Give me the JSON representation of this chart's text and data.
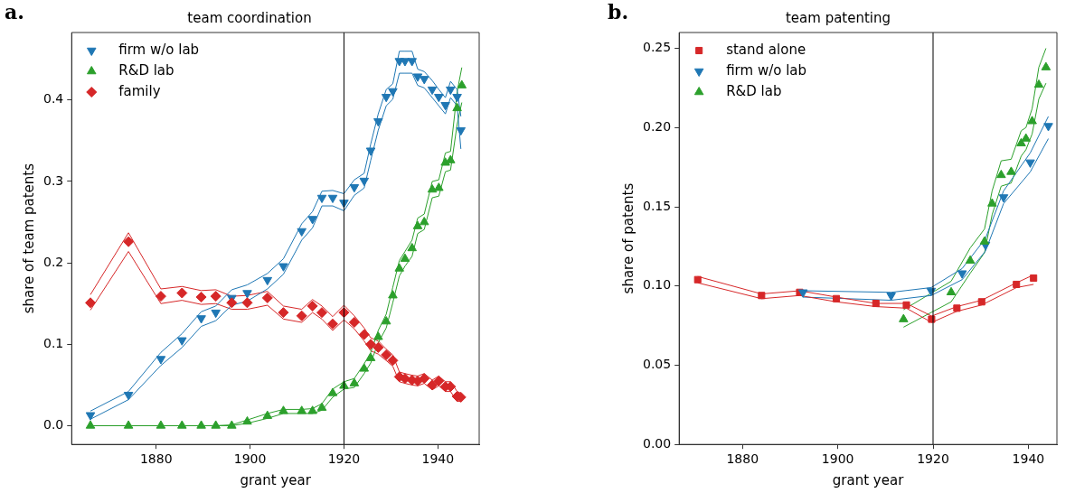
{
  "chart_data": [
    {
      "type": "scatter",
      "title": "team coordination",
      "xlabel": "grant year",
      "ylabel": "share of team patents",
      "annotations": [
        "a."
      ],
      "xlim": [
        1862,
        1948.8
      ],
      "ylim": [
        -0.023,
        0.483
      ],
      "xticks": [
        1880,
        1900,
        1920,
        1940
      ],
      "yticks": [
        {
          "value": 0,
          "label": "0.0"
        },
        {
          "value": 0.1,
          "label": "0.1"
        },
        {
          "value": 0.2,
          "label": "0.2"
        },
        {
          "value": 0.3,
          "label": "0.3"
        },
        {
          "value": 0.4,
          "label": "0.4"
        }
      ],
      "grid": false,
      "legend": "top left",
      "ref_lines": [
        {
          "axis": "x",
          "value": 1920,
          "color": "#000000"
        }
      ],
      "series": [
        {
          "name": "firm w/o lab",
          "color": "#1f77b4",
          "marker": "triangle-down",
          "x": [
            1866,
            1874.1,
            1881,
            1885.5,
            1889.6,
            1892.7,
            1896.1,
            1899.4,
            1903.7,
            1907.1,
            1911,
            1913.3,
            1915.3,
            1917.6,
            1920,
            1922.2,
            1924.3,
            1925.7,
            1927.3,
            1929,
            1930.4,
            1931.8,
            1933,
            1934.5,
            1935.7,
            1937.1,
            1938.8,
            1940.2,
            1941.6,
            1942.7,
            1944.1,
            1944.9
          ],
          "values": [
            0.013,
            0.038,
            0.082,
            0.105,
            0.132,
            0.139,
            0.157,
            0.163,
            0.179,
            0.196,
            0.239,
            0.254,
            0.28,
            0.28,
            0.274,
            0.293,
            0.301,
            0.338,
            0.374,
            0.404,
            0.411,
            0.448,
            0.448,
            0.448,
            0.429,
            0.426,
            0.413,
            0.404,
            0.394,
            0.413,
            0.404,
            0.363
          ]
        },
        {
          "name": "R&D lab",
          "color": "#2ca02c",
          "marker": "triangle",
          "x": [
            1866,
            1874.1,
            1881,
            1885.5,
            1889.6,
            1892.7,
            1896.1,
            1899.4,
            1903.7,
            1907.1,
            1911,
            1913.3,
            1915.3,
            1917.6,
            1920,
            1922.2,
            1924.3,
            1925.7,
            1927.3,
            1929,
            1930.4,
            1931.8,
            1933,
            1934.5,
            1935.7,
            1937.1,
            1938.8,
            1940.2,
            1941.6,
            1942.7,
            1944.1,
            1945.1
          ],
          "values": [
            0,
            0,
            0,
            0,
            0,
            0,
            0,
            0.005,
            0.012,
            0.018,
            0.018,
            0.018,
            0.022,
            0.04,
            0.049,
            0.052,
            0.07,
            0.083,
            0.109,
            0.128,
            0.16,
            0.193,
            0.205,
            0.218,
            0.245,
            0.25,
            0.29,
            0.292,
            0.323,
            0.326,
            0.39,
            0.418
          ]
        },
        {
          "name": "family",
          "color": "#d62728",
          "marker": "diamond",
          "x": [
            1866,
            1874.1,
            1881,
            1885.5,
            1889.6,
            1892.7,
            1896.1,
            1899.4,
            1903.7,
            1907.1,
            1911,
            1913.3,
            1915.3,
            1917.6,
            1920,
            1922.2,
            1924.3,
            1925.7,
            1927.3,
            1929,
            1930.4,
            1931.8,
            1933,
            1934.5,
            1935.7,
            1937.1,
            1938.8,
            1940.2,
            1941.6,
            1942.7,
            1944.1,
            1944.9
          ],
          "values": [
            0.151,
            0.226,
            0.159,
            0.163,
            0.158,
            0.159,
            0.151,
            0.151,
            0.157,
            0.139,
            0.135,
            0.147,
            0.139,
            0.125,
            0.139,
            0.127,
            0.112,
            0.1,
            0.096,
            0.087,
            0.08,
            0.06,
            0.058,
            0.056,
            0.055,
            0.058,
            0.05,
            0.055,
            0.048,
            0.048,
            0.036,
            0.035
          ]
        },
        {
          "type": "line",
          "color": "#1f77b4",
          "marker": "none",
          "x": [
            1866,
            1874.1,
            1881,
            1885.5,
            1889.6,
            1892.7,
            1896.1,
            1899.4,
            1903.7,
            1907.1,
            1911,
            1913.3,
            1915.3,
            1917.6,
            1920,
            1922.2,
            1924.3,
            1925.7,
            1927.3,
            1929,
            1930.4,
            1931.8,
            1933,
            1934.5,
            1935.7,
            1937.1,
            1938.8,
            1940.2,
            1941.6,
            1942.7,
            1944.1,
            1944.9
          ],
          "values": [
            0.018,
            0.042,
            0.09,
            0.113,
            0.14,
            0.147,
            0.167,
            0.173,
            0.187,
            0.205,
            0.248,
            0.263,
            0.288,
            0.289,
            0.285,
            0.302,
            0.31,
            0.346,
            0.383,
            0.413,
            0.42,
            0.46,
            0.46,
            0.46,
            0.438,
            0.435,
            0.424,
            0.413,
            0.403,
            0.423,
            0.413,
            0.38
          ]
        },
        {
          "type": "line",
          "color": "#1f77b4",
          "marker": "none",
          "x": [
            1866,
            1874.1,
            1881,
            1885.5,
            1889.6,
            1892.7,
            1896.1,
            1899.4,
            1903.7,
            1907.1,
            1911,
            1913.3,
            1915.3,
            1917.6,
            1920,
            1922.2,
            1924.3,
            1925.7,
            1927.3,
            1929,
            1930.4,
            1931.8,
            1933,
            1934.5,
            1935.7,
            1937.1,
            1938.8,
            1940.2,
            1941.6,
            1942.7,
            1944.1,
            1944.9
          ],
          "values": [
            0.008,
            0.032,
            0.074,
            0.096,
            0.122,
            0.129,
            0.148,
            0.153,
            0.168,
            0.186,
            0.228,
            0.243,
            0.27,
            0.27,
            0.264,
            0.283,
            0.292,
            0.326,
            0.363,
            0.393,
            0.401,
            0.433,
            0.433,
            0.433,
            0.418,
            0.415,
            0.403,
            0.393,
            0.383,
            0.403,
            0.393,
            0.34
          ]
        },
        {
          "type": "line",
          "color": "#2ca02c",
          "marker": "none",
          "x": [
            1866,
            1874.1,
            1881,
            1885.5,
            1889.6,
            1892.7,
            1896.1,
            1899.4,
            1903.7,
            1907.1,
            1911,
            1913.3,
            1915.3,
            1917.6,
            1920,
            1922.2,
            1924.3,
            1925.7,
            1927.3,
            1929,
            1930.4,
            1931.8,
            1933,
            1934.5,
            1935.7,
            1937.1,
            1938.8,
            1940.2,
            1941.6,
            1942.7,
            1944.1,
            1945.1
          ],
          "values": [
            0,
            0,
            0,
            0,
            0,
            0,
            0.001,
            0.007,
            0.015,
            0.02,
            0.02,
            0.021,
            0.027,
            0.045,
            0.054,
            0.058,
            0.076,
            0.09,
            0.117,
            0.137,
            0.17,
            0.203,
            0.214,
            0.228,
            0.255,
            0.26,
            0.3,
            0.302,
            0.335,
            0.337,
            0.41,
            0.44
          ]
        },
        {
          "type": "line",
          "color": "#2ca02c",
          "marker": "none",
          "x": [
            1866,
            1874.1,
            1881,
            1885.5,
            1889.6,
            1892.7,
            1896.1,
            1899.4,
            1903.7,
            1907.1,
            1911,
            1913.3,
            1915.3,
            1917.6,
            1920,
            1922.2,
            1924.3,
            1925.7,
            1927.3,
            1929,
            1930.4,
            1931.8,
            1933,
            1934.5,
            1935.7,
            1937.1,
            1938.8,
            1940.2,
            1941.6,
            1942.7,
            1944.1,
            1945.1
          ],
          "values": [
            0,
            0,
            0,
            0,
            0,
            0,
            0,
            0.003,
            0.009,
            0.015,
            0.015,
            0.015,
            0.019,
            0.035,
            0.045,
            0.047,
            0.064,
            0.077,
            0.102,
            0.12,
            0.151,
            0.184,
            0.196,
            0.208,
            0.236,
            0.241,
            0.28,
            0.282,
            0.312,
            0.314,
            0.37,
            0.397
          ]
        },
        {
          "type": "line",
          "color": "#d62728",
          "marker": "none",
          "x": [
            1866,
            1874.1,
            1881,
            1885.5,
            1889.6,
            1892.7,
            1896.1,
            1899.4,
            1903.7,
            1907.1,
            1911,
            1913.3,
            1915.3,
            1917.6,
            1920,
            1922.2,
            1924.3,
            1925.7,
            1927.3,
            1929,
            1930.4,
            1931.8,
            1933,
            1934.5,
            1935.7,
            1937.1,
            1938.8,
            1940.2,
            1941.6,
            1942.7,
            1944.1,
            1944.9
          ],
          "values": [
            0.161,
            0.237,
            0.168,
            0.171,
            0.166,
            0.167,
            0.159,
            0.16,
            0.165,
            0.147,
            0.143,
            0.155,
            0.147,
            0.134,
            0.148,
            0.135,
            0.12,
            0.108,
            0.104,
            0.094,
            0.087,
            0.066,
            0.064,
            0.062,
            0.061,
            0.064,
            0.056,
            0.061,
            0.054,
            0.054,
            0.042,
            0.04
          ]
        },
        {
          "type": "line",
          "color": "#d62728",
          "marker": "none",
          "x": [
            1866,
            1874.1,
            1881,
            1885.5,
            1889.6,
            1892.7,
            1896.1,
            1899.4,
            1903.7,
            1907.1,
            1911,
            1913.3,
            1915.3,
            1917.6,
            1920,
            1922.2,
            1924.3,
            1925.7,
            1927.3,
            1929,
            1930.4,
            1931.8,
            1933,
            1934.5,
            1935.7,
            1937.1,
            1938.8,
            1940.2,
            1941.6,
            1942.7,
            1944.1,
            1944.9
          ],
          "values": [
            0.142,
            0.214,
            0.15,
            0.154,
            0.149,
            0.15,
            0.143,
            0.143,
            0.148,
            0.131,
            0.127,
            0.139,
            0.131,
            0.117,
            0.13,
            0.119,
            0.104,
            0.092,
            0.088,
            0.08,
            0.073,
            0.054,
            0.052,
            0.05,
            0.049,
            0.052,
            0.044,
            0.049,
            0.042,
            0.042,
            0.03,
            0.03
          ]
        }
      ]
    },
    {
      "type": "scatter",
      "title": "team patenting",
      "xlabel": "grant year",
      "ylabel": "share of patents",
      "annotations": [
        "b."
      ],
      "xlim": [
        1866.7,
        1946
      ],
      "ylim": [
        0,
        0.26
      ],
      "xticks": [
        1880,
        1900,
        1920,
        1940
      ],
      "yticks": [
        {
          "value": 0,
          "label": "0.00"
        },
        {
          "value": 0.05,
          "label": "0.05"
        },
        {
          "value": 0.1,
          "label": "0.10"
        },
        {
          "value": 0.15,
          "label": "0.15"
        },
        {
          "value": 0.2,
          "label": "0.20"
        },
        {
          "value": 0.25,
          "label": "0.25"
        }
      ],
      "grid": false,
      "legend": "top left",
      "ref_lines": [
        {
          "axis": "x",
          "value": 1920,
          "color": "#000000"
        }
      ],
      "series": [
        {
          "name": "stand alone",
          "color": "#d62728",
          "marker": "square",
          "x": [
            1870.6,
            1884,
            1892,
            1899.7,
            1908,
            1914.4,
            1919.7,
            1925,
            1930.2,
            1937.5,
            1941.1
          ],
          "values": [
            0.104,
            0.094,
            0.096,
            0.092,
            0.089,
            0.088,
            0.079,
            0.086,
            0.09,
            0.101,
            0.105
          ]
        },
        {
          "name": "firm w/o lab",
          "color": "#1f77b4",
          "marker": "triangle-down",
          "x": [
            1892.7,
            1911.2,
            1919.6,
            1926.1,
            1931,
            1934.8,
            1940.4,
            1944.2
          ],
          "values": [
            0.096,
            0.094,
            0.097,
            0.108,
            0.126,
            0.156,
            0.178,
            0.201
          ]
        },
        {
          "name": "R&D lab",
          "color": "#2ca02c",
          "marker": "triangle",
          "x": [
            1913.8,
            1923.8,
            1927.8,
            1930.8,
            1932.4,
            1934.3,
            1936.4,
            1938.5,
            1939.5,
            1940.8,
            1942.2,
            1943.7
          ],
          "values": [
            0.079,
            0.096,
            0.116,
            0.128,
            0.152,
            0.17,
            0.172,
            0.19,
            0.193,
            0.204,
            0.227,
            0.238
          ]
        },
        {
          "type": "line",
          "color": "#d62728",
          "marker": "none",
          "x": [
            1870.6,
            1884,
            1892,
            1899.7,
            1908,
            1914.4,
            1919.7,
            1925,
            1930.2,
            1937.5,
            1941.1
          ],
          "values": [
            0.106,
            0.095,
            0.097,
            0.093,
            0.089,
            0.089,
            0.081,
            0.087,
            0.091,
            0.102,
            0.107
          ]
        },
        {
          "type": "line",
          "color": "#d62728",
          "marker": "none",
          "x": [
            1870.6,
            1884,
            1892,
            1899.7,
            1908,
            1914.4,
            1919.7,
            1925,
            1930.2,
            1937.5,
            1941.1
          ],
          "values": [
            0.102,
            0.092,
            0.094,
            0.09,
            0.087,
            0.086,
            0.077,
            0.084,
            0.088,
            0.099,
            0.101
          ]
        },
        {
          "type": "line",
          "color": "#1f77b4",
          "marker": "none",
          "x": [
            1892.7,
            1911.2,
            1919.6,
            1926.1,
            1931,
            1934.8,
            1940.4,
            1944.2
          ],
          "values": [
            0.097,
            0.096,
            0.099,
            0.111,
            0.13,
            0.16,
            0.184,
            0.207
          ]
        },
        {
          "type": "line",
          "color": "#1f77b4",
          "marker": "none",
          "x": [
            1892.7,
            1911.2,
            1919.6,
            1926.1,
            1931,
            1934.8,
            1940.4,
            1944.2
          ],
          "values": [
            0.093,
            0.091,
            0.094,
            0.104,
            0.122,
            0.152,
            0.172,
            0.193
          ]
        },
        {
          "type": "line",
          "color": "#2ca02c",
          "marker": "none",
          "x": [
            1913.8,
            1923.8,
            1927.8,
            1930.8,
            1932.4,
            1934.3,
            1936.4,
            1938.5,
            1939.5,
            1940.8,
            1942.2,
            1943.7
          ],
          "values": [
            0.085,
            0.103,
            0.124,
            0.136,
            0.16,
            0.179,
            0.18,
            0.198,
            0.2,
            0.212,
            0.238,
            0.25
          ]
        },
        {
          "type": "line",
          "color": "#2ca02c",
          "marker": "none",
          "x": [
            1913.8,
            1923.8,
            1927.8,
            1930.8,
            1932.4,
            1934.3,
            1936.4,
            1938.5,
            1939.5,
            1940.8,
            1942.2,
            1943.7
          ],
          "values": [
            0.074,
            0.09,
            0.108,
            0.121,
            0.145,
            0.163,
            0.165,
            0.182,
            0.186,
            0.196,
            0.218,
            0.228
          ]
        }
      ]
    }
  ]
}
